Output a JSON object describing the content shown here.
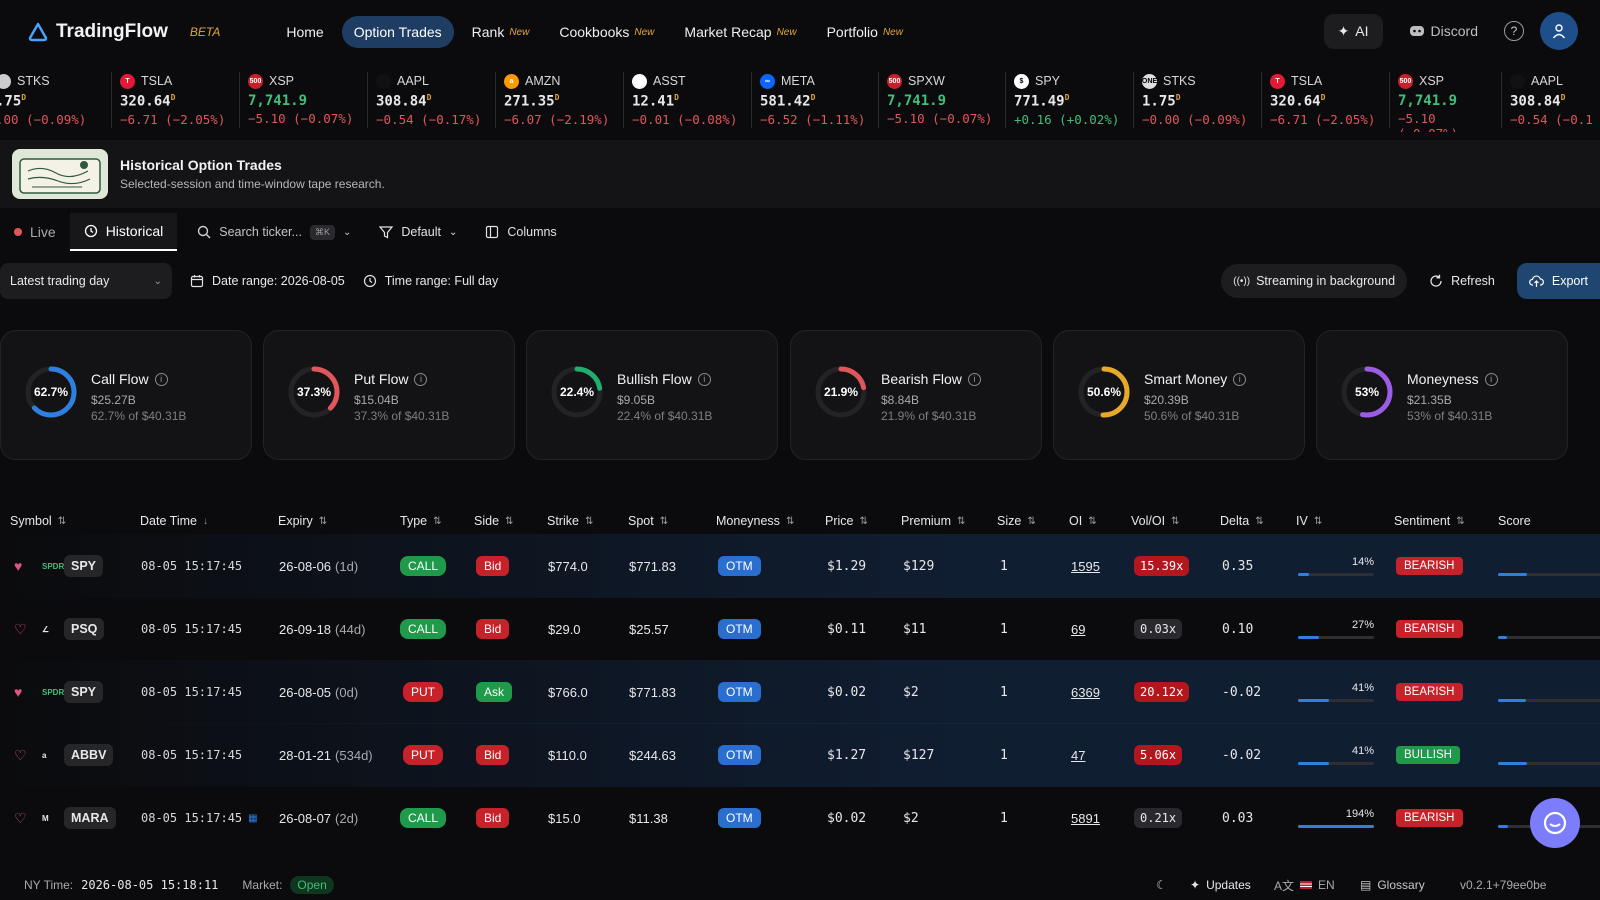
{
  "brand": {
    "name": "TradingFlow",
    "badge": "BETA"
  },
  "nav": {
    "links": [
      {
        "label": "Home",
        "new": ""
      },
      {
        "label": "Option Trades",
        "new": ""
      },
      {
        "label": "Rank",
        "new": "New"
      },
      {
        "label": "Cookbooks",
        "new": "New"
      },
      {
        "label": "Market Recap",
        "new": "New"
      },
      {
        "label": "Portfolio",
        "new": "New"
      }
    ],
    "ai_label": "AI",
    "discord_label": "Discord",
    "help_label": "?"
  },
  "ticker": [
    {
      "symbol": "STKS",
      "price": ".75",
      "suffix": "D",
      "change": ".00 (−0.09%)",
      "dir": "neg",
      "icon_color": "#cccccc",
      "icon_text": ""
    },
    {
      "symbol": "TSLA",
      "price": "320.64",
      "suffix": "D",
      "change": "−6.71 (−2.05%)",
      "dir": "neg",
      "icon_color": "#e31937",
      "icon_text": "T"
    },
    {
      "symbol": "XSP",
      "price": "7,741.9",
      "suffix": "",
      "change": "−5.10 (−0.07%)",
      "dir": "neg",
      "icon_color": "#c8202b",
      "icon_text": "500"
    },
    {
      "symbol": "AAPL",
      "price": "308.84",
      "suffix": "D",
      "change": "−0.54 (−0.17%)",
      "dir": "neg",
      "icon_color": "#111111",
      "icon_text": ""
    },
    {
      "symbol": "AMZN",
      "price": "271.35",
      "suffix": "D",
      "change": "−6.07 (−2.19%)",
      "dir": "neg",
      "icon_color": "#ff9900",
      "icon_text": "a"
    },
    {
      "symbol": "ASST",
      "price": "12.41",
      "suffix": "D",
      "change": "−0.01 (−0.08%)",
      "dir": "neg",
      "icon_color": "#ffffff",
      "icon_text": ""
    },
    {
      "symbol": "META",
      "price": "581.42",
      "suffix": "D",
      "change": "−6.52 (−1.11%)",
      "dir": "neg",
      "icon_color": "#0a66ff",
      "icon_text": "∞"
    },
    {
      "symbol": "SPXW",
      "price": "7,741.9",
      "suffix": "",
      "change": "−5.10 (−0.07%)",
      "dir": "neg",
      "icon_color": "#c8202b",
      "icon_text": "500"
    },
    {
      "symbol": "SPY",
      "price": "771.49",
      "suffix": "D",
      "change": "+0.16 (+0.02%)",
      "dir": "pos",
      "icon_color": "#ffffff",
      "icon_text": "$"
    },
    {
      "symbol": "STKS",
      "price": "1.75",
      "suffix": "D",
      "change": "−0.00 (−0.09%)",
      "dir": "neg",
      "icon_color": "#dddddd",
      "icon_text": "ONE"
    },
    {
      "symbol": "TSLA",
      "price": "320.64",
      "suffix": "D",
      "change": "−6.71 (−2.05%)",
      "dir": "neg",
      "icon_color": "#e31937",
      "icon_text": "T"
    },
    {
      "symbol": "XSP",
      "price": "7,741.9",
      "suffix": "",
      "change": "−5.10 (−0.07%)",
      "dir": "neg",
      "icon_color": "#c8202b",
      "icon_text": "500"
    },
    {
      "symbol": "AAPL",
      "price": "308.84",
      "suffix": "D",
      "change": "−0.54 (−0.1",
      "dir": "neg",
      "icon_color": "#111111",
      "icon_text": ""
    }
  ],
  "banner": {
    "title": "Historical Option Trades",
    "subtitle": "Selected-session and time-window tape research."
  },
  "toolbar": {
    "live": "Live",
    "historical": "Historical",
    "search_placeholder": "Search ticker...",
    "search_kbd": "⌘K",
    "preset": "Default",
    "columns": "Columns"
  },
  "filters": {
    "day_select": "Latest trading day",
    "date_range": "Date range: 2026-08-05",
    "time_range": "Time range: Full day",
    "streaming": "Streaming in background",
    "refresh": "Refresh",
    "export": "Export"
  },
  "cards": [
    {
      "title": "Call Flow",
      "pct_label": "62.7%",
      "fraction": 0.627,
      "value": "$25.27B",
      "sub": "62.7% of $40.31B",
      "color": "#2f7fe0"
    },
    {
      "title": "Put Flow",
      "pct_label": "37.3%",
      "fraction": 0.373,
      "value": "$15.04B",
      "sub": "37.3% of $40.31B",
      "color": "#e0565b"
    },
    {
      "title": "Bullish Flow",
      "pct_label": "22.4%",
      "fraction": 0.224,
      "value": "$9.05B",
      "sub": "22.4% of $40.31B",
      "color": "#1fae6b"
    },
    {
      "title": "Bearish Flow",
      "pct_label": "21.9%",
      "fraction": 0.219,
      "value": "$8.84B",
      "sub": "21.9% of $40.31B",
      "color": "#e0565b"
    },
    {
      "title": "Smart Money",
      "pct_label": "50.6%",
      "fraction": 0.506,
      "value": "$20.39B",
      "sub": "50.6% of $40.31B",
      "color": "#e7a92a"
    },
    {
      "title": "Moneyness",
      "pct_label": "53%",
      "fraction": 0.53,
      "value": "$21.35B",
      "sub": "53% of $40.31B",
      "color": "#9b5de5"
    }
  ],
  "table": {
    "headers": [
      "Symbol",
      "Date Time",
      "Expiry",
      "Type",
      "Side",
      "Strike",
      "Spot",
      "Moneyness",
      "Price",
      "Premium",
      "Size",
      "OI",
      "Vol/OI",
      "Delta",
      "IV",
      "Sentiment",
      "Score"
    ],
    "rows": [
      {
        "fav": true,
        "logo": "SPDR",
        "symbol": "SPY",
        "datetime": "08-05 15:17:45",
        "expiry": "26-08-06",
        "dte": "(1d)",
        "type": "CALL",
        "side": "Bid",
        "strike": "$774.0",
        "spot": "$771.83",
        "moneyness": "OTM",
        "price": "$1.29",
        "premium": "$129",
        "size": "1",
        "oi": "1595",
        "voloi": "15.39x",
        "voloi_hi": true,
        "delta": "0.35",
        "iv": "14%",
        "iv_level": 0.14,
        "sentiment": "BEARISH",
        "score": "38",
        "hl": true
      },
      {
        "fav": false,
        "logo": "∠",
        "symbol": "PSQ",
        "datetime": "08-05 15:17:45",
        "expiry": "26-09-18",
        "dte": "(44d)",
        "type": "CALL",
        "side": "Bid",
        "strike": "$29.0",
        "spot": "$25.57",
        "moneyness": "OTM",
        "price": "$0.11",
        "premium": "$11",
        "size": "1",
        "oi": "69",
        "voloi": "0.03x",
        "voloi_hi": false,
        "delta": "0.10",
        "iv": "27%",
        "iv_level": 0.27,
        "sentiment": "BEARISH",
        "score": "12",
        "hl": false
      },
      {
        "fav": true,
        "logo": "SPDR",
        "symbol": "SPY",
        "datetime": "08-05 15:17:45",
        "expiry": "26-08-05",
        "dte": "(0d)",
        "type": "PUT",
        "side": "Ask",
        "strike": "$766.0",
        "spot": "$771.83",
        "moneyness": "OTM",
        "price": "$0.02",
        "premium": "$2",
        "size": "1",
        "oi": "6369",
        "voloi": "20.12x",
        "voloi_hi": true,
        "delta": "-0.02",
        "iv": "41%",
        "iv_level": 0.41,
        "sentiment": "BEARISH",
        "score": "37",
        "hl": true
      },
      {
        "fav": false,
        "logo": "a",
        "symbol": "ABBV",
        "datetime": "08-05 15:17:45",
        "expiry": "28-01-21",
        "dte": "(534d)",
        "type": "PUT",
        "side": "Bid",
        "strike": "$110.0",
        "spot": "$244.63",
        "moneyness": "OTM",
        "price": "$1.27",
        "premium": "$127",
        "size": "1",
        "oi": "47",
        "voloi": "5.06x",
        "voloi_hi": true,
        "delta": "-0.02",
        "iv": "41%",
        "iv_level": 0.41,
        "sentiment": "BULLISH",
        "score": "38",
        "hl": true
      },
      {
        "fav": false,
        "logo": "M",
        "symbol": "MARA",
        "datetime": "08-05 15:17:45",
        "expiry": "26-08-07",
        "dte": "(2d)",
        "type": "CALL",
        "side": "Bid",
        "strike": "$15.0",
        "spot": "$11.38",
        "moneyness": "OTM",
        "price": "$0.02",
        "premium": "$2",
        "size": "1",
        "oi": "5891",
        "voloi": "0.21x",
        "voloi_hi": false,
        "delta": "0.03",
        "iv": "194%",
        "iv_level": 1.0,
        "sentiment": "BEARISH",
        "score": "13",
        "hl": false
      }
    ]
  },
  "footer": {
    "ny_label": "NY Time:",
    "ny_time": "2026-08-05 15:18:11",
    "market_label": "Market:",
    "market_status": "Open",
    "updates": "Updates",
    "lang": "EN",
    "glossary": "Glossary",
    "version": "v0.2.1+79ee0be"
  }
}
